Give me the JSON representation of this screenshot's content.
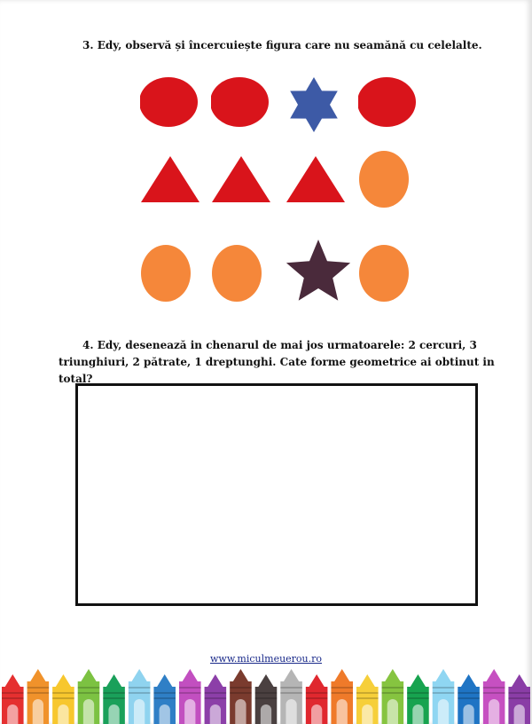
{
  "exercise3": {
    "title": "3. Edy, observă și încercuiește figura care nu seamănă cu celelalte.",
    "rows": [
      {
        "shapes": [
          "circle",
          "circle",
          "star",
          "circle"
        ],
        "colors": [
          "#d9141b",
          "#d9141b",
          "#3d5aa6",
          "#d9141b"
        ]
      },
      {
        "shapes": [
          "triangle",
          "triangle",
          "triangle",
          "circle"
        ],
        "colors": [
          "#d9141b",
          "#d9141b",
          "#d9141b",
          "#f5873a"
        ]
      },
      {
        "shapes": [
          "circle",
          "circle",
          "star",
          "circle"
        ],
        "colors": [
          "#f5873a",
          "#f5873a",
          "#4a2a3b",
          "#f5873a"
        ]
      }
    ]
  },
  "exercise4": {
    "text": "4. Edy, desenează in chenarul de mai jos urmatoarele: 2 cercuri, 3 triunghiuri, 2 pătrate, 1 dreptunghi. Cate forme geometrice ai obtinut in total?"
  },
  "footer": {
    "link": "www.miculmeuerou.ro"
  },
  "crayon_colors": [
    "#e53030",
    "#f0922b",
    "#f7c72e",
    "#7cc242",
    "#1aa05a",
    "#8fd3ef",
    "#2f7fc6",
    "#c24fc0",
    "#8c3fa8",
    "#7a3b2e",
    "#4a4040",
    "#b5b5b5",
    "#e0282f",
    "#ef7a2a",
    "#f6cf3a",
    "#86c440",
    "#17a34f",
    "#8fd6f2",
    "#1f74c4",
    "#c650c1",
    "#8a3da6"
  ]
}
